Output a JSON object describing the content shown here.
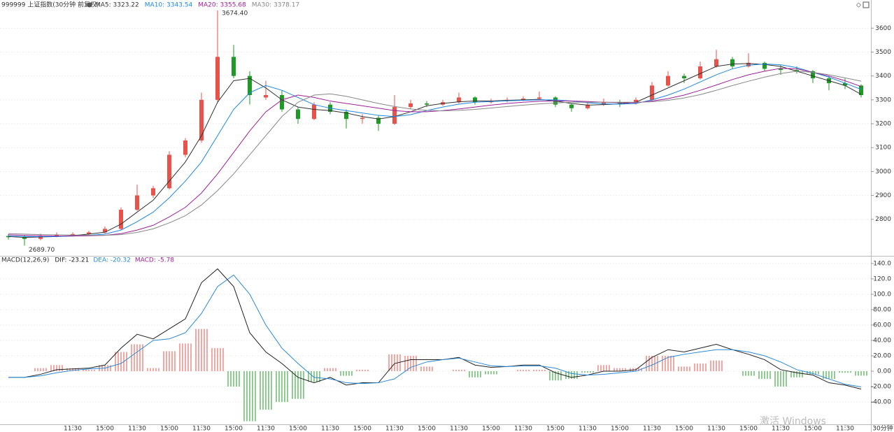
{
  "chart_data": [
    {
      "type": "candlestick",
      "title": "999999 上证指数(30分钟 前复权)",
      "period": "30分钟",
      "categories": [
        null,
        null,
        null,
        null,
        "11:30",
        null,
        "15:00",
        null,
        "11:30",
        null,
        "15:00",
        null,
        "11:30",
        null,
        "15:00",
        null,
        "11:30",
        null,
        "15:00",
        null,
        "11:30",
        null,
        "15:00",
        null,
        "11:30",
        null,
        "15:00",
        null,
        "11:30",
        null,
        "15:00",
        null,
        "11:30",
        null,
        "15:00",
        null,
        "11:30",
        null,
        "15:00",
        null,
        "11:30",
        null,
        "15:00",
        null,
        "11:30",
        null,
        "15:00",
        null,
        "11:30",
        null,
        "15:00",
        null,
        "11:30",
        null
      ],
      "ohlc": [
        [
          2730,
          2738,
          2715,
          2725
        ],
        [
          2725,
          2732,
          2689.7,
          2718
        ],
        [
          2718,
          2740,
          2712,
          2730
        ],
        [
          2730,
          2745,
          2725,
          2735
        ],
        [
          2735,
          2745,
          2728,
          2738
        ],
        [
          2738,
          2752,
          2732,
          2745
        ],
        [
          2745,
          2770,
          2740,
          2760
        ],
        [
          2760,
          2850,
          2755,
          2840
        ],
        [
          2840,
          2945,
          2835,
          2900
        ],
        [
          2900,
          2940,
          2890,
          2930
        ],
        [
          2930,
          3085,
          2925,
          3070
        ],
        [
          3070,
          3140,
          3060,
          3130
        ],
        [
          3130,
          3330,
          3120,
          3300
        ],
        [
          3300,
          3674.4,
          3290,
          3480
        ],
        [
          3480,
          3530,
          3390,
          3400
        ],
        [
          3400,
          3420,
          3280,
          3320
        ],
        [
          3310,
          3380,
          3300,
          3320
        ],
        [
          3320,
          3340,
          3250,
          3260
        ],
        [
          3260,
          3270,
          3200,
          3220
        ],
        [
          3220,
          3290,
          3215,
          3280
        ],
        [
          3280,
          3290,
          3240,
          3250
        ],
        [
          3250,
          3260,
          3180,
          3220
        ],
        [
          3220,
          3240,
          3200,
          3225
        ],
        [
          3225,
          3235,
          3170,
          3200
        ],
        [
          3200,
          3320,
          3195,
          3270
        ],
        [
          3270,
          3300,
          3260,
          3285
        ],
        [
          3285,
          3295,
          3270,
          3280
        ],
        [
          3280,
          3300,
          3275,
          3290
        ],
        [
          3290,
          3330,
          3285,
          3310
        ],
        [
          3310,
          3315,
          3280,
          3290
        ],
        [
          3290,
          3305,
          3285,
          3295
        ],
        [
          3295,
          3310,
          3290,
          3300
        ],
        [
          3300,
          3315,
          3295,
          3305
        ],
        [
          3305,
          3335,
          3300,
          3310
        ],
        [
          3310,
          3315,
          3270,
          3280
        ],
        [
          3280,
          3285,
          3250,
          3265
        ],
        [
          3265,
          3290,
          3260,
          3280
        ],
        [
          3280,
          3305,
          3275,
          3290
        ],
        [
          3290,
          3300,
          3270,
          3285
        ],
        [
          3285,
          3310,
          3280,
          3300
        ],
        [
          3300,
          3375,
          3295,
          3360
        ],
        [
          3360,
          3420,
          3355,
          3400
        ],
        [
          3400,
          3410,
          3370,
          3390
        ],
        [
          3390,
          3460,
          3385,
          3440
        ],
        [
          3440,
          3510,
          3435,
          3470
        ],
        [
          3470,
          3480,
          3430,
          3440
        ],
        [
          3440,
          3495,
          3435,
          3455
        ],
        [
          3455,
          3460,
          3420,
          3430
        ],
        [
          3430,
          3445,
          3405,
          3425
        ],
        [
          3425,
          3440,
          3410,
          3420
        ],
        [
          3420,
          3425,
          3370,
          3390
        ],
        [
          3390,
          3400,
          3340,
          3370
        ],
        [
          3370,
          3390,
          3345,
          3360
        ],
        [
          3360,
          3365,
          3310,
          3320
        ]
      ],
      "up_color": "#e8524a",
      "down_color": "#1f9a26",
      "series": [
        {
          "name": "MA5: 3323.22",
          "color": "#333333",
          "values": [
            2728,
            2724,
            2726,
            2728,
            2732,
            2738,
            2746,
            2780,
            2830,
            2880,
            2960,
            3040,
            3150,
            3290,
            3380,
            3390,
            3350,
            3300,
            3270,
            3260,
            3255,
            3245,
            3230,
            3220,
            3230,
            3250,
            3275,
            3285,
            3292,
            3295,
            3295,
            3298,
            3300,
            3302,
            3295,
            3285,
            3278,
            3280,
            3283,
            3290,
            3320,
            3350,
            3380,
            3410,
            3440,
            3450,
            3452,
            3448,
            3440,
            3420,
            3400,
            3380,
            3360,
            3323.22
          ]
        },
        {
          "name": "MA10: 3343.54",
          "color": "#1e88e5",
          "values": [
            2730,
            2728,
            2727,
            2728,
            2730,
            2733,
            2738,
            2755,
            2790,
            2830,
            2890,
            2960,
            3040,
            3150,
            3260,
            3330,
            3360,
            3340,
            3310,
            3280,
            3265,
            3255,
            3245,
            3235,
            3230,
            3238,
            3255,
            3270,
            3282,
            3290,
            3293,
            3296,
            3298,
            3300,
            3300,
            3295,
            3288,
            3283,
            3282,
            3285,
            3300,
            3320,
            3345,
            3375,
            3405,
            3430,
            3445,
            3450,
            3447,
            3435,
            3415,
            3395,
            3370,
            3343.54
          ]
        },
        {
          "name": "MA20: 3355.68",
          "color": "#a0209a",
          "values": [
            2735,
            2733,
            2731,
            2730,
            2730,
            2731,
            2733,
            2740,
            2755,
            2775,
            2810,
            2850,
            2910,
            2990,
            3080,
            3170,
            3250,
            3300,
            3320,
            3310,
            3295,
            3285,
            3275,
            3265,
            3255,
            3250,
            3250,
            3255,
            3262,
            3270,
            3278,
            3285,
            3290,
            3294,
            3296,
            3295,
            3293,
            3290,
            3288,
            3288,
            3295,
            3305,
            3320,
            3340,
            3362,
            3385,
            3405,
            3420,
            3432,
            3430,
            3415,
            3400,
            3380,
            3355.68
          ]
        },
        {
          "name": "MA30: 3378.17",
          "color": "#888888",
          "values": [
            2740,
            2738,
            2736,
            2735,
            2734,
            2733,
            2733,
            2736,
            2745,
            2760,
            2785,
            2815,
            2860,
            2920,
            2990,
            3070,
            3150,
            3230,
            3290,
            3320,
            3325,
            3315,
            3300,
            3285,
            3272,
            3262,
            3256,
            3254,
            3256,
            3260,
            3266,
            3272,
            3278,
            3283,
            3287,
            3290,
            3290,
            3290,
            3290,
            3290,
            3292,
            3298,
            3308,
            3322,
            3340,
            3360,
            3378,
            3395,
            3410,
            3420,
            3415,
            3405,
            3392,
            3378.17
          ]
        }
      ],
      "annotations": [
        {
          "label": "3674.40",
          "value": 3674.4,
          "index": 13
        },
        {
          "label": "2689.70",
          "value": 2689.7,
          "index": 1
        }
      ],
      "ylim": [
        2647,
        3718
      ],
      "yticks": [
        2800,
        2900,
        3000,
        3100,
        3200,
        3300,
        3400,
        3500,
        3600
      ]
    },
    {
      "type": "macd",
      "title": "MACD(12,26,9)",
      "series": [
        {
          "name": "DIF: -23.21",
          "color": "#222222",
          "values": [
            -8,
            -8,
            -4,
            2,
            3,
            4,
            8,
            30,
            48,
            42,
            55,
            68,
            115,
            133,
            110,
            50,
            25,
            10,
            -8,
            -15,
            -8,
            -18,
            -15,
            -15,
            10,
            15,
            15,
            15,
            18,
            8,
            5,
            6,
            8,
            8,
            -2,
            -8,
            -5,
            0,
            0,
            2,
            18,
            28,
            25,
            30,
            35,
            28,
            22,
            15,
            2,
            -2,
            -5,
            -15,
            -18,
            -23.21
          ]
        },
        {
          "name": "DEA: -20.32",
          "color": "#2a8ad8",
          "values": [
            -8,
            -8,
            -6,
            -2,
            1,
            3,
            4,
            10,
            25,
            40,
            42,
            50,
            75,
            110,
            125,
            100,
            60,
            30,
            10,
            -8,
            -10,
            -15,
            -16,
            -15,
            -10,
            5,
            12,
            15,
            17,
            12,
            7,
            6,
            7,
            7,
            4,
            -3,
            -5,
            -4,
            -2,
            0,
            8,
            18,
            22,
            25,
            28,
            28,
            25,
            20,
            12,
            2,
            -3,
            -10,
            -17,
            -20.32
          ]
        }
      ],
      "histogram": {
        "name": "MACD: -5.78",
        "color": "#a0209a",
        "up_color": "#e8524a",
        "down_color": "#1f9a26",
        "values": [
          0,
          0,
          4,
          8,
          4,
          2,
          8,
          25,
          35,
          4,
          26,
          36,
          55,
          30,
          -20,
          -65,
          -50,
          -40,
          -36,
          -14,
          4,
          -6,
          2,
          0,
          22,
          20,
          6,
          0,
          2,
          -8,
          -4,
          0,
          2,
          2,
          -12,
          -10,
          -2,
          8,
          4,
          4,
          20,
          20,
          6,
          10,
          14,
          0,
          -6,
          -10,
          -20,
          -8,
          -4,
          -10,
          -2,
          -5.78
        ]
      },
      "ylim": [
        -69,
        149
      ],
      "yticks": [
        {
          "value": -40,
          "label": "-40.00"
        },
        {
          "value": -20,
          "label": "-20.00"
        },
        {
          "value": 0,
          "label": "0.00"
        },
        {
          "value": 20,
          "label": "20.00"
        },
        {
          "value": 40,
          "label": "40.00"
        },
        {
          "value": 60,
          "label": "60.00"
        },
        {
          "value": 80,
          "label": "80.00"
        },
        {
          "value": 100,
          "label": "100.0"
        },
        {
          "value": 120,
          "label": "120.0"
        },
        {
          "value": 140,
          "label": "140.0"
        }
      ]
    }
  ],
  "watermark": "激活 Windows"
}
